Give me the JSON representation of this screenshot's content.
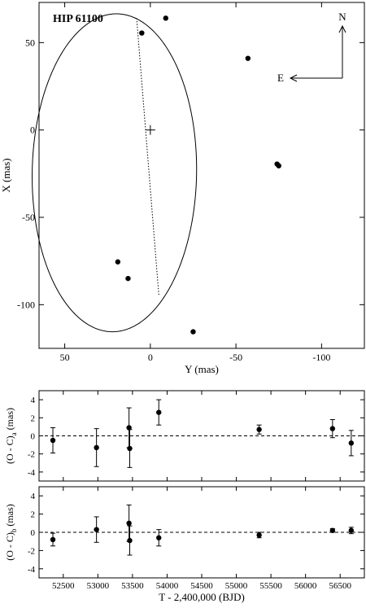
{
  "chart_data": [
    {
      "type": "scatter",
      "title": "HIP 61100",
      "xlabel": "Y (mas)",
      "ylabel": "X (mas)",
      "xlim": [
        65,
        -125
      ],
      "ylim": [
        -125,
        73
      ],
      "xticks": [
        50,
        0,
        -50,
        -100
      ],
      "yticks": [
        50,
        0,
        -50,
        -100
      ],
      "orbit": {
        "center": [
          21,
          -24.5
        ],
        "semi_axis_y": 48,
        "semi_axis_x": 91,
        "rotation_deg": 1
      },
      "center_mark": [
        0,
        0
      ],
      "node_line": [
        [
          8,
          64
        ],
        [
          -5,
          -95
        ]
      ],
      "points": [
        {
          "y": 5,
          "x": 55.5
        },
        {
          "y": -9,
          "x": 64
        },
        {
          "y": -57,
          "x": 41
        },
        {
          "y": -74,
          "x": -19.5
        },
        {
          "y": -75,
          "x": -20.5
        },
        {
          "y": 19,
          "x": -75.5
        },
        {
          "y": 13,
          "x": -85
        },
        {
          "y": -25,
          "x": -115.5
        }
      ],
      "compass": {
        "north": "N",
        "east": "E"
      }
    },
    {
      "type": "scatter",
      "xlabel": "",
      "ylabel": "(O - C)a (mas)",
      "ylabel_main": "(O - C)",
      "ylabel_sub": "a",
      "ylabel_unit": " (mas)",
      "xlim": [
        52150,
        56850
      ],
      "ylim": [
        -5,
        5
      ],
      "yticks": [
        -4,
        -2,
        0,
        2,
        4
      ],
      "reference_line": 0,
      "points": [
        {
          "x": 52350,
          "y": -0.5,
          "err": 1.4
        },
        {
          "x": 52980,
          "y": -1.3,
          "err": 2.1
        },
        {
          "x": 53450,
          "y": 0.9,
          "err": 2.2
        },
        {
          "x": 53460,
          "y": -1.4,
          "err": 2.1
        },
        {
          "x": 53880,
          "y": 2.6,
          "err": 1.4
        },
        {
          "x": 55330,
          "y": 0.7,
          "err": 0.5
        },
        {
          "x": 56390,
          "y": 0.8,
          "err": 1.0
        },
        {
          "x": 56660,
          "y": -0.8,
          "err": 1.4
        }
      ]
    },
    {
      "type": "scatter",
      "xlabel": "T - 2,400,000 (BJD)",
      "ylabel": "(O - C)b (mas)",
      "ylabel_main": "(O - C)",
      "ylabel_sub": "b",
      "ylabel_unit": " (mas)",
      "xlim": [
        52150,
        56850
      ],
      "ylim": [
        -5,
        5
      ],
      "yticks": [
        -4,
        -2,
        0,
        2,
        4
      ],
      "xticks": [
        52500,
        53000,
        53500,
        54000,
        54500,
        55000,
        55500,
        56000,
        56500
      ],
      "reference_line": 0,
      "points": [
        {
          "x": 52350,
          "y": -0.8,
          "err": 0.7
        },
        {
          "x": 52980,
          "y": 0.3,
          "err": 1.4
        },
        {
          "x": 53450,
          "y": 1.0,
          "err": 2.0
        },
        {
          "x": 53460,
          "y": -0.9,
          "err": 1.6
        },
        {
          "x": 53880,
          "y": -0.6,
          "err": 0.9
        },
        {
          "x": 55330,
          "y": -0.3,
          "err": 0.3
        },
        {
          "x": 56390,
          "y": 0.2,
          "err": 0.2
        },
        {
          "x": 56660,
          "y": 0.2,
          "err": 0.35
        }
      ]
    }
  ]
}
